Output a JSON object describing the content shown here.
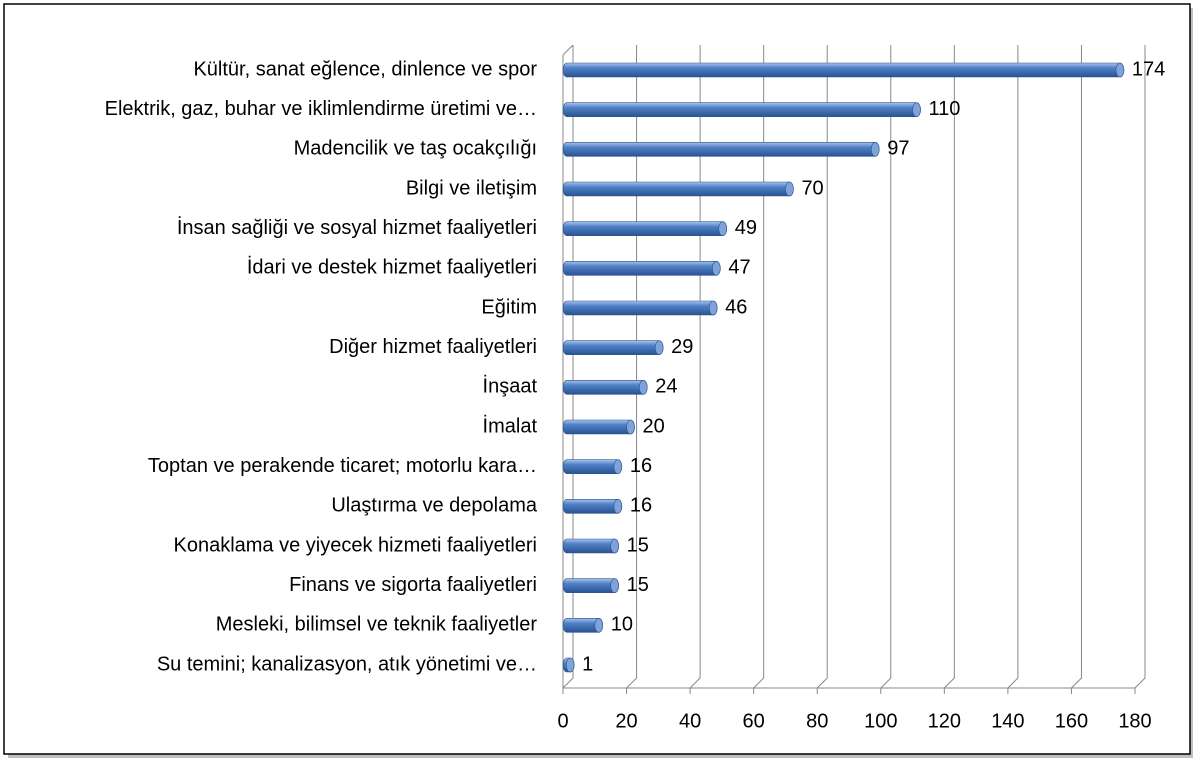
{
  "chart_data": {
    "type": "bar",
    "orientation": "horizontal",
    "categories": [
      "Kültür, sanat eğlence, dinlence ve spor",
      "Elektrik, gaz, buhar ve iklimlendirme üretimi ve…",
      "Madencilik ve taş ocakçılığı",
      "Bilgi ve iletişim",
      "İnsan sağliği ve sosyal hizmet faaliyetleri",
      "İdari ve destek hizmet faaliyetleri",
      "Eğitim",
      "Diğer hizmet faaliyetleri",
      "İnşaat",
      "İmalat",
      "Toptan ve perakende ticaret; motorlu kara…",
      "Ulaştırma ve depolama",
      "Konaklama ve yiyecek hizmeti faaliyetleri",
      "Finans ve sigorta faaliyetleri",
      "Mesleki, bilimsel ve teknik faaliyetler",
      "Su temini; kanalizasyon, atık yönetimi ve…"
    ],
    "values": [
      174,
      110,
      97,
      70,
      49,
      47,
      46,
      29,
      24,
      20,
      16,
      16,
      15,
      15,
      10,
      1
    ],
    "color": "#4a7ebb",
    "xlim": [
      0,
      180
    ],
    "xticks": [
      0,
      20,
      40,
      60,
      80,
      100,
      120,
      140,
      160,
      180
    ],
    "grid": true
  }
}
